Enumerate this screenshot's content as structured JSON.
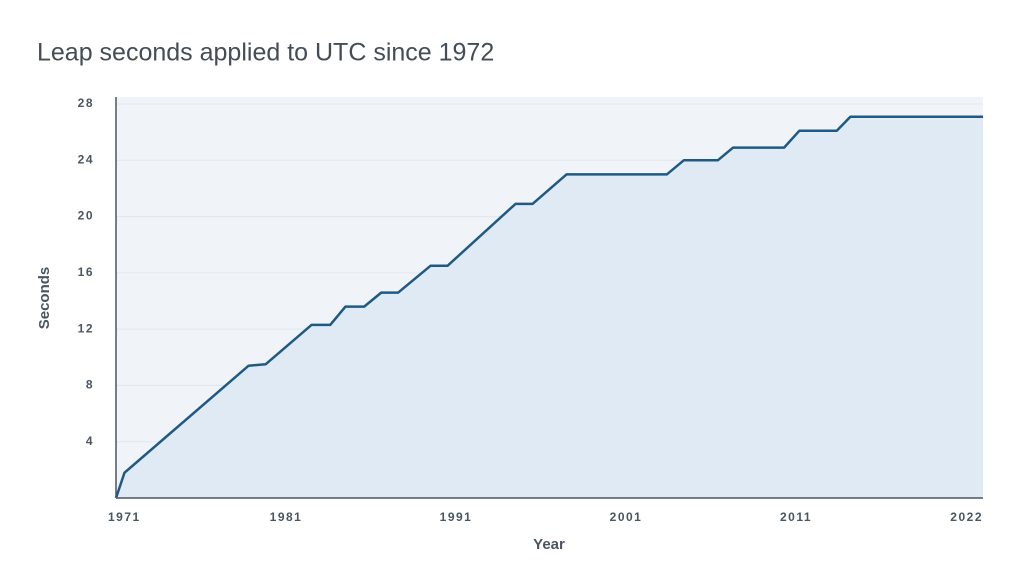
{
  "chart_data": {
    "type": "area",
    "title": "Leap seconds applied to UTC since 1972",
    "xlabel": "Year",
    "ylabel": "Seconds",
    "x": [
      1971,
      1971.5,
      1978.8,
      1979.8,
      1982.5,
      1983.6,
      1984.5,
      1985.6,
      1986.6,
      1987.6,
      1989.5,
      1990.5,
      1994.5,
      1995.5,
      1997.5,
      2003.4,
      2004.4,
      2006.4,
      2007.3,
      2010.3,
      2011.2,
      2013.4,
      2014.2,
      2022
    ],
    "values": [
      0,
      1.8,
      9.4,
      9.5,
      12.3,
      12.3,
      13.6,
      13.6,
      14.6,
      14.6,
      16.5,
      16.5,
      20.9,
      20.9,
      23,
      23,
      24,
      24,
      24.9,
      24.9,
      26.1,
      26.1,
      27.1,
      27.1
    ],
    "color": "#1f5a85",
    "fill": "#dfeaf5",
    "xlim": [
      1971,
      2022
    ],
    "xticks": [
      1971,
      1981,
      1991,
      2001,
      2011,
      2022
    ],
    "ylim": [
      0,
      28
    ],
    "yticks": [
      4,
      8,
      12,
      16,
      20,
      24,
      28
    ],
    "grid": true
  }
}
